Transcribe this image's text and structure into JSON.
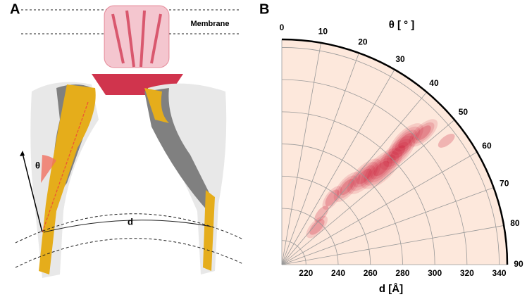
{
  "panel_a": {
    "label": "A",
    "membrane": "Membrane",
    "theta": "θ",
    "d": "d"
  },
  "chart_data": {
    "type": "polar-contour",
    "panel_label": "B",
    "theta_label": "θ [ ° ]",
    "r_label": "d [Å]",
    "thetalim": [
      0,
      90
    ],
    "thetaticks": [
      0,
      10,
      20,
      30,
      40,
      50,
      60,
      70,
      80,
      90
    ],
    "rlim": [
      205,
      345
    ],
    "rticks": [
      220,
      240,
      260,
      280,
      300,
      320,
      340
    ],
    "grid": true,
    "background": "#fde8dc",
    "color": "#c8102e",
    "peaks": [
      {
        "d": 291,
        "theta": 46,
        "level": 5
      },
      {
        "d": 314,
        "theta": 45,
        "level": 4
      },
      {
        "d": 325,
        "theta": 47,
        "level": 3
      },
      {
        "d": 305,
        "theta": 46,
        "level": 4
      },
      {
        "d": 268,
        "theta": 40,
        "level": 3
      },
      {
        "d": 257,
        "theta": 37,
        "level": 2
      },
      {
        "d": 280,
        "theta": 43,
        "level": 4
      },
      {
        "d": 237,
        "theta": 43,
        "level": 2
      },
      {
        "d": 333,
        "theta": 53,
        "level": 1
      },
      {
        "d": 245,
        "theta": 38,
        "level": 1
      }
    ]
  }
}
